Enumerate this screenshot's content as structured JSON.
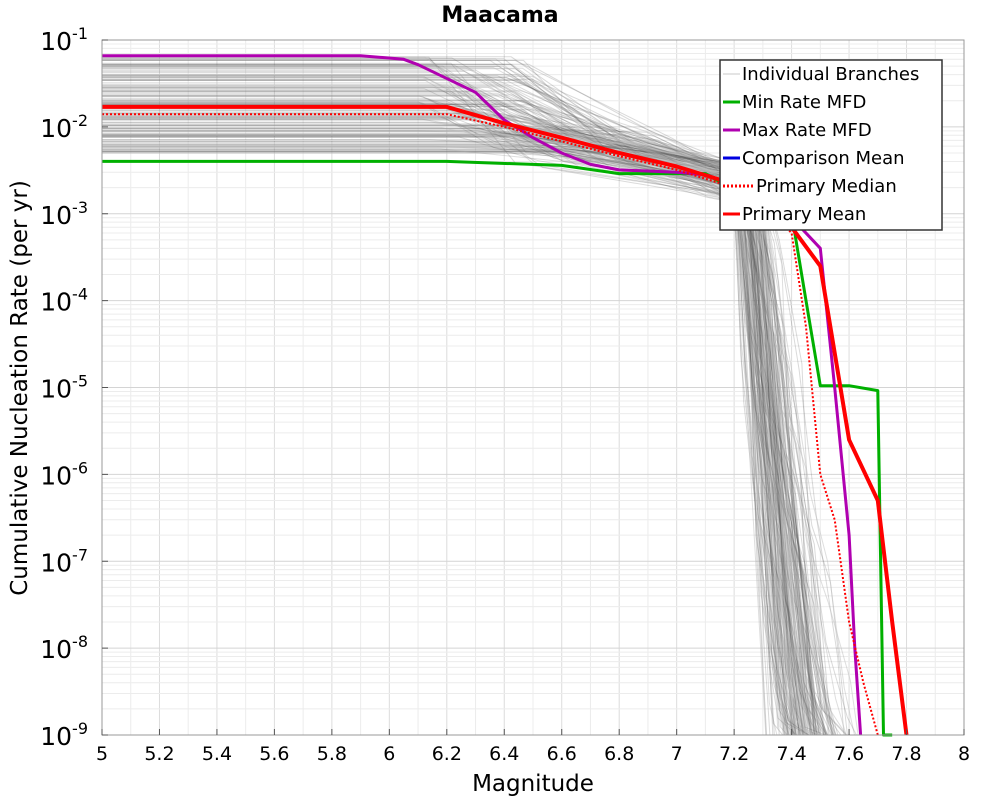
{
  "chart_data": {
    "type": "line",
    "title": "Maacama",
    "xlabel": "Magnitude",
    "ylabel": "Cumulative Nucleation Rate (per yr)",
    "xlim": [
      5,
      8
    ],
    "ylim": [
      1e-09,
      0.1
    ],
    "yscale": "log",
    "x_ticks": [
      "5",
      "5.2",
      "5.4",
      "5.6",
      "5.8",
      "6",
      "6.2",
      "6.4",
      "6.6",
      "6.8",
      "7",
      "7.2",
      "7.4",
      "7.6",
      "7.8",
      "8"
    ],
    "y_tick_exponents": [
      "-1",
      "-2",
      "-3",
      "-4",
      "-5",
      "-6",
      "-7",
      "-8",
      "-9"
    ],
    "y_tick_base": "10",
    "grid": true,
    "legend_position": "top-right",
    "legend": [
      {
        "label": "Individual Branches",
        "color": "#c8c8c8",
        "style": "solid"
      },
      {
        "label": "Min Rate MFD",
        "color": "#00b000",
        "style": "solid"
      },
      {
        "label": "Max Rate MFD",
        "color": "#b000b0",
        "style": "solid"
      },
      {
        "label": "Comparison Mean",
        "color": "#0000e0",
        "style": "solid"
      },
      {
        "label": "Primary Median",
        "color": "#ff0000",
        "style": "dotted"
      },
      {
        "label": "Primary Mean",
        "color": "#ff0000",
        "style": "solid"
      }
    ],
    "series": [
      {
        "name": "Min Rate MFD",
        "color": "#00b000",
        "x": [
          5.0,
          6.2,
          6.6,
          6.8,
          7.1,
          7.25,
          7.3,
          7.35,
          7.4,
          7.45,
          7.5,
          7.6,
          7.7,
          7.72,
          7.75
        ],
        "y": [
          0.004,
          0.004,
          0.0036,
          0.0029,
          0.0029,
          0.0015,
          0.0012,
          0.0011,
          0.001,
          0.0001,
          1.05e-05,
          1.05e-05,
          9.2e-06,
          1e-09,
          1e-09
        ]
      },
      {
        "name": "Max Rate MFD",
        "color": "#b000b0",
        "x": [
          5.0,
          5.9,
          6.05,
          6.1,
          6.3,
          6.4,
          6.5,
          6.6,
          6.7,
          6.8,
          7.0,
          7.1,
          7.2,
          7.3,
          7.4,
          7.5,
          7.55,
          7.6,
          7.62,
          7.64
        ],
        "y": [
          0.066,
          0.066,
          0.06,
          0.052,
          0.025,
          0.012,
          0.0075,
          0.005,
          0.0037,
          0.0032,
          0.003,
          0.0028,
          0.0022,
          0.0015,
          0.0009,
          0.0004,
          1e-05,
          2e-07,
          1e-08,
          1e-09
        ]
      },
      {
        "name": "Comparison Mean",
        "color": "#0000e0",
        "x": [
          5.0,
          6.2,
          6.4,
          6.6,
          6.8,
          7.0,
          7.2,
          7.3,
          7.4,
          7.5,
          7.6,
          7.7,
          7.75,
          7.8
        ],
        "y": [
          0.017,
          0.017,
          0.011,
          0.0075,
          0.005,
          0.0035,
          0.0022,
          0.0015,
          0.0007,
          0.00025,
          2.5e-06,
          5e-07,
          2e-08,
          1e-09
        ]
      },
      {
        "name": "Primary Median",
        "color": "#ff0000",
        "dashed": true,
        "x": [
          5.0,
          6.2,
          6.4,
          6.6,
          6.8,
          7.0,
          7.2,
          7.3,
          7.4,
          7.45,
          7.5,
          7.55,
          7.6,
          7.65,
          7.7
        ],
        "y": [
          0.014,
          0.014,
          0.01,
          0.0068,
          0.0046,
          0.0032,
          0.002,
          0.0013,
          0.0006,
          5e-05,
          1e-06,
          3e-07,
          2e-08,
          4e-09,
          1e-09
        ]
      },
      {
        "name": "Primary Mean",
        "color": "#ff0000",
        "x": [
          5.0,
          6.2,
          6.4,
          6.6,
          6.8,
          7.0,
          7.2,
          7.3,
          7.4,
          7.5,
          7.6,
          7.7,
          7.75,
          7.8
        ],
        "y": [
          0.017,
          0.017,
          0.011,
          0.0075,
          0.005,
          0.0035,
          0.0022,
          0.0015,
          0.0007,
          0.00025,
          2.5e-06,
          5e-07,
          2e-08,
          1e-09
        ]
      }
    ],
    "branches_band": {
      "plateau_min": 0.005,
      "plateau_max": 0.065,
      "knee_min": 6.1,
      "knee_max": 6.5,
      "mid_rate": 0.0028,
      "cutoff_min": 7.25,
      "cutoff_max": 7.8
    }
  }
}
